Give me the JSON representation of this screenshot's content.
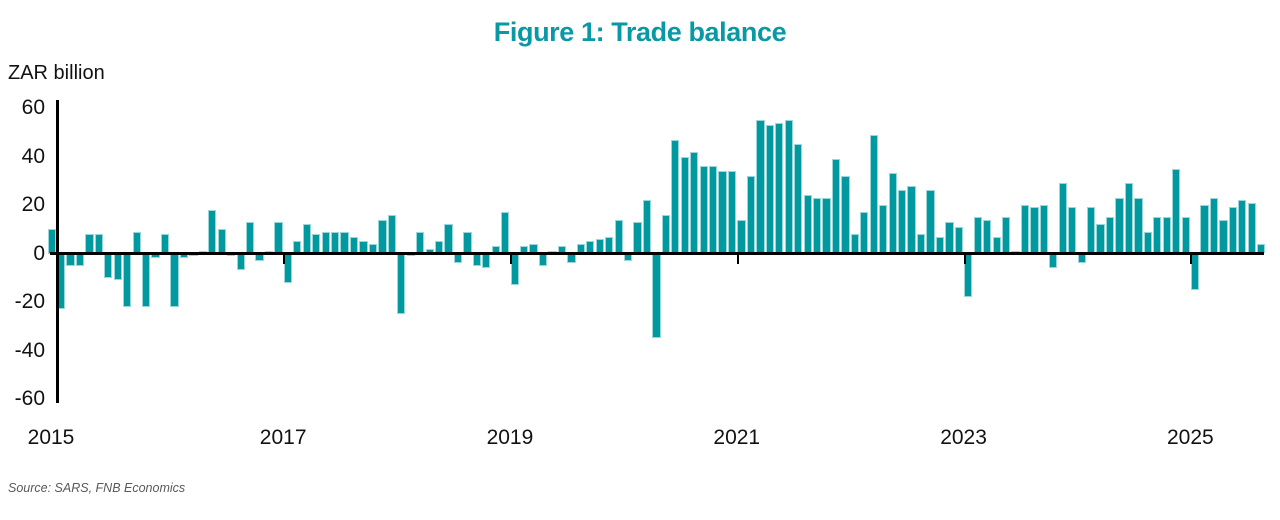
{
  "figure": {
    "title": "Figure 1: Trade balance",
    "y_axis_unit_label": "ZAR billion",
    "source_note": "Source: SARS, FNB Economics"
  },
  "colors": {
    "bar_fill": "#00999F",
    "bar_edge": "#9BD7D9",
    "title_teal": "#0999A6",
    "axis_black": "#000000",
    "tick_label_dark": "#121212",
    "source_gray": "#595959"
  },
  "chart_data": {
    "type": "bar",
    "title": "Figure 1: Trade balance",
    "ylabel": "ZAR billion",
    "xlabel": "",
    "series_name": "Monthly trade balance",
    "units": "ZAR billion",
    "frequency": "monthly",
    "ylim": [
      -60,
      60
    ],
    "ytick_interval": 20,
    "yticks": [
      60,
      40,
      20,
      0,
      -20,
      -40,
      -60
    ],
    "grid": false,
    "legend": false,
    "xticks": [
      {
        "label": "2015",
        "month_index": 1
      },
      {
        "label": "2017",
        "month_index": 25
      },
      {
        "label": "2019",
        "month_index": 49
      },
      {
        "label": "2021",
        "month_index": 73
      },
      {
        "label": "2023",
        "month_index": 97
      },
      {
        "label": "2025",
        "month_index": 121
      }
    ],
    "months": [
      "2014-12",
      "2015-01",
      "2015-02",
      "2015-03",
      "2015-04",
      "2015-05",
      "2015-06",
      "2015-07",
      "2015-08",
      "2015-09",
      "2015-10",
      "2015-11",
      "2015-12",
      "2016-01",
      "2016-02",
      "2016-03",
      "2016-04",
      "2016-05",
      "2016-06",
      "2016-07",
      "2016-08",
      "2016-09",
      "2016-10",
      "2016-11",
      "2016-12",
      "2017-01",
      "2017-02",
      "2017-03",
      "2017-04",
      "2017-05",
      "2017-06",
      "2017-07",
      "2017-08",
      "2017-09",
      "2017-10",
      "2017-11",
      "2017-12",
      "2018-01",
      "2018-02",
      "2018-03",
      "2018-04",
      "2018-05",
      "2018-06",
      "2018-07",
      "2018-08",
      "2018-09",
      "2018-10",
      "2018-11",
      "2018-12",
      "2019-01",
      "2019-02",
      "2019-03",
      "2019-04",
      "2019-05",
      "2019-06",
      "2019-07",
      "2019-08",
      "2019-09",
      "2019-10",
      "2019-11",
      "2019-12",
      "2020-01",
      "2020-02",
      "2020-03",
      "2020-04",
      "2020-05",
      "2020-06",
      "2020-07",
      "2020-08",
      "2020-09",
      "2020-10",
      "2020-11",
      "2020-12",
      "2021-01",
      "2021-02",
      "2021-03",
      "2021-04",
      "2021-05",
      "2021-06",
      "2021-07",
      "2021-08",
      "2021-09",
      "2021-10",
      "2021-11",
      "2021-12",
      "2022-01",
      "2022-02",
      "2022-03",
      "2022-04",
      "2022-05",
      "2022-06",
      "2022-07",
      "2022-08",
      "2022-09",
      "2022-10",
      "2022-11",
      "2022-12",
      "2023-01",
      "2023-02",
      "2023-03",
      "2023-04",
      "2023-05",
      "2023-06",
      "2023-07",
      "2023-08",
      "2023-09",
      "2023-10",
      "2023-11",
      "2023-12",
      "2024-01",
      "2024-02",
      "2024-03",
      "2024-04",
      "2024-05",
      "2024-06",
      "2024-07",
      "2024-08",
      "2024-09",
      "2024-10",
      "2024-11",
      "2024-12",
      "2025-01",
      "2025-02",
      "2025-03",
      "2025-04",
      "2025-05",
      "2025-06",
      "2025-07",
      "2025-08"
    ],
    "values": [
      10,
      -23,
      -5,
      -5,
      8,
      8,
      -10,
      -11,
      -22,
      9,
      -22,
      -2,
      8,
      -22,
      -2,
      -1,
      1,
      18,
      10,
      -1,
      -7,
      13,
      -3,
      1,
      13,
      -12,
      5,
      12,
      8,
      9,
      9,
      9,
      7,
      5,
      4,
      14,
      16,
      -25,
      -1,
      9,
      2,
      5,
      12,
      -4,
      9,
      -5,
      -6,
      3,
      17,
      -13,
      3,
      4,
      -5,
      1,
      3,
      -4,
      4,
      5,
      6,
      7,
      14,
      -3,
      13,
      22,
      -35,
      16,
      47,
      40,
      42,
      36,
      36,
      34,
      34,
      14,
      32,
      55,
      53,
      54,
      55,
      45,
      24,
      23,
      23,
      39,
      32,
      8,
      17,
      49,
      20,
      33,
      26,
      28,
      8,
      26,
      7,
      13,
      11,
      -18,
      15,
      14,
      7,
      15,
      1,
      20,
      19,
      20,
      -6,
      29,
      19,
      -4,
      19,
      12,
      15,
      23,
      29,
      23,
      9,
      15,
      15,
      35,
      15,
      -15,
      20,
      23,
      14,
      19,
      22,
      21,
      4
    ]
  }
}
